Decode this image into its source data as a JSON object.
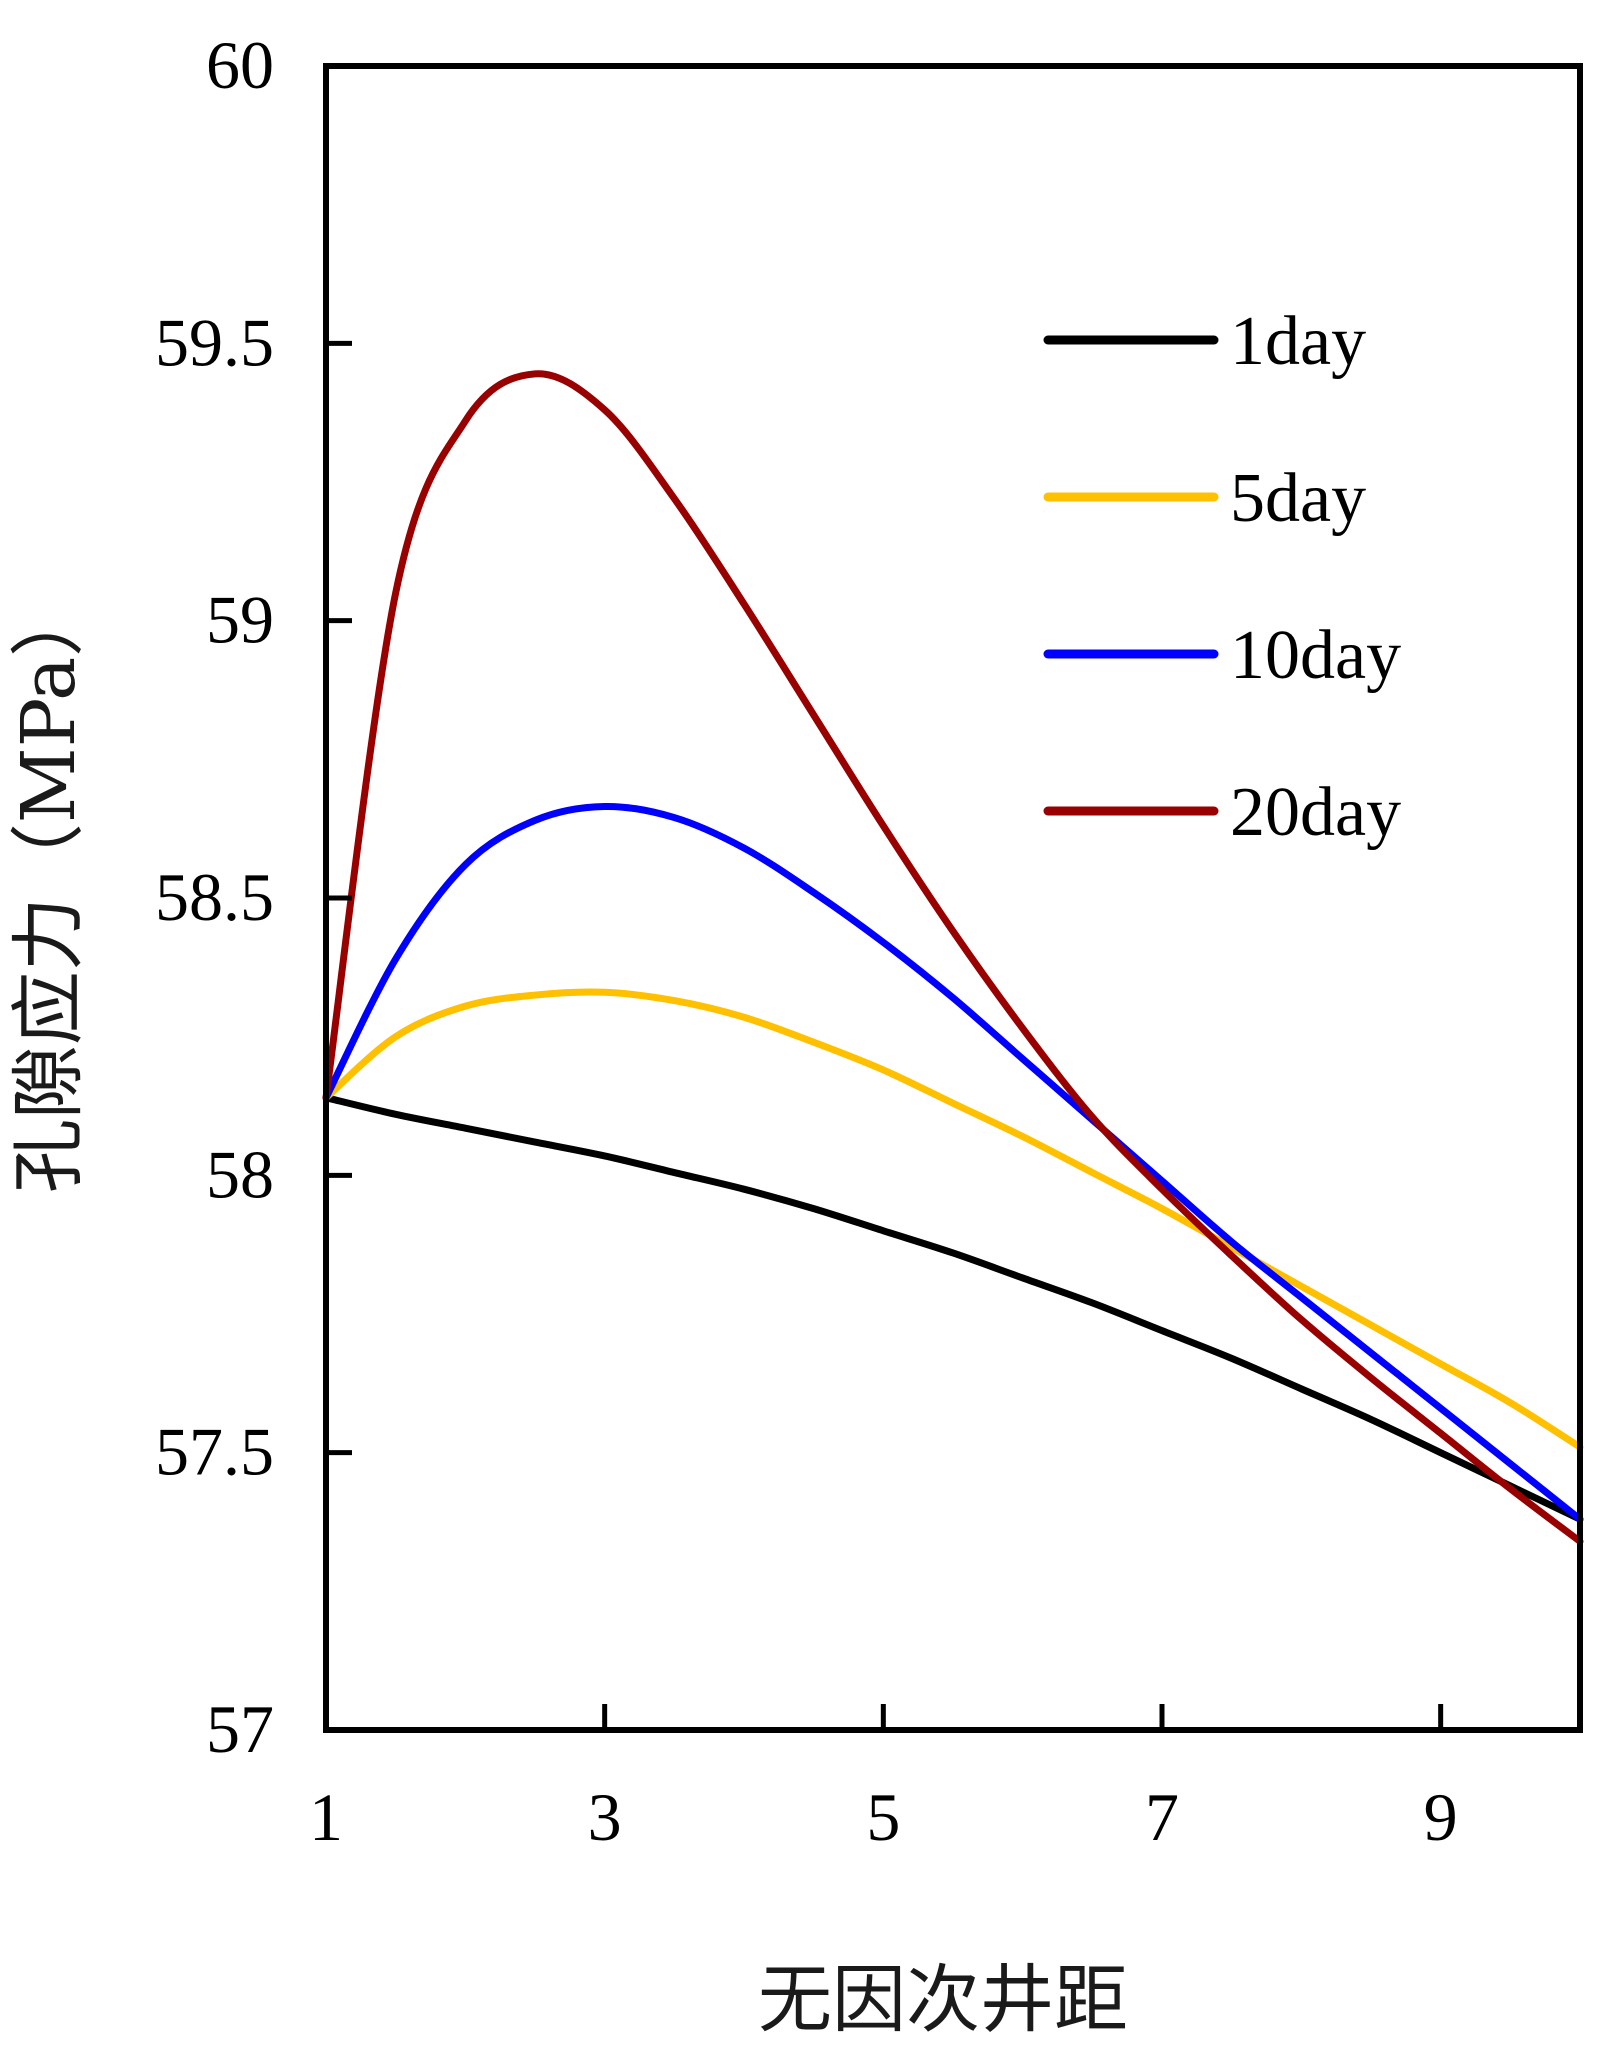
{
  "chart_data": {
    "type": "line",
    "xlabel": "无因次井距",
    "ylabel": "孔隙应力（MPa）",
    "xlim": [
      1,
      10
    ],
    "ylim": [
      57,
      60
    ],
    "xticks": [
      1,
      3,
      5,
      7,
      9
    ],
    "xtick_labels": [
      "1",
      "3",
      "5",
      "7",
      "9"
    ],
    "yticks": [
      57,
      57.5,
      58,
      58.5,
      59,
      59.5,
      60
    ],
    "ytick_labels": [
      "57",
      "57.5",
      "58",
      "58.5",
      "59",
      "59.5",
      "60"
    ],
    "grid": false,
    "legend_position": "upper-right",
    "x": [
      1,
      1.5,
      2,
      2.5,
      3,
      3.5,
      4,
      4.5,
      5,
      5.5,
      6,
      6.5,
      7,
      7.5,
      8,
      8.5,
      9,
      9.5,
      10
    ],
    "series": [
      {
        "name": "1day",
        "color": "#000000",
        "values": [
          58.14,
          58.11,
          58.085,
          58.06,
          58.035,
          58.005,
          57.975,
          57.94,
          57.9,
          57.86,
          57.815,
          57.77,
          57.72,
          57.67,
          57.615,
          57.56,
          57.5,
          57.44,
          57.38
        ]
      },
      {
        "name": "5day",
        "color": "#FFC000",
        "values": [
          58.14,
          58.25,
          58.305,
          58.325,
          58.33,
          58.315,
          58.285,
          58.24,
          58.19,
          58.13,
          58.07,
          58.005,
          57.94,
          57.87,
          57.8,
          57.73,
          57.66,
          57.59,
          57.51
        ]
      },
      {
        "name": "10day",
        "color": "#0000FF",
        "values": [
          58.14,
          58.39,
          58.56,
          58.64,
          58.665,
          58.645,
          58.59,
          58.51,
          58.42,
          58.32,
          58.21,
          58.1,
          57.99,
          57.88,
          57.78,
          57.68,
          57.58,
          57.48,
          57.38
        ]
      },
      {
        "name": "20day",
        "color": "#990000",
        "values": [
          58.14,
          59.05,
          59.36,
          59.445,
          59.38,
          59.22,
          59.03,
          58.83,
          58.63,
          58.44,
          58.265,
          58.105,
          57.975,
          57.855,
          57.74,
          57.635,
          57.535,
          57.435,
          57.34
        ]
      }
    ]
  }
}
